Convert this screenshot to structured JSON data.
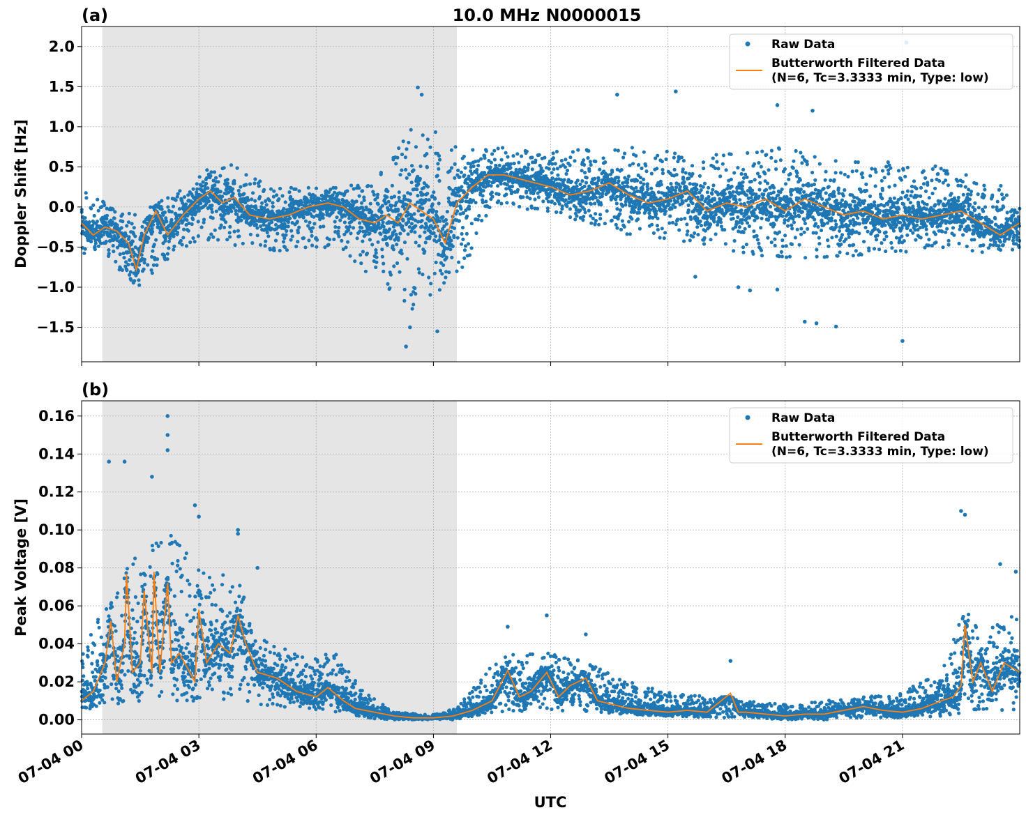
{
  "figure_title": "10.0 MHz N0000015",
  "xlabel": "UTC",
  "x_tick_labels": [
    "07-04 00",
    "07-04 03",
    "07-04 06",
    "07-04 09",
    "07-04 12",
    "07-04 15",
    "07-04 18",
    "07-04 21"
  ],
  "colors": {
    "raw": "#1f77b4",
    "filtered": "#ff7f0e",
    "shade": "#e5e5e5",
    "grid": "#b0b0b0"
  },
  "legend": {
    "raw_label": "Raw Data",
    "filtered_label_1": "Butterworth Filtered Data",
    "filtered_label_2": "(N=6, Tc=3.3333 min, Type: low)"
  },
  "chart_data": [
    {
      "panel": "(a)",
      "type": "scatter",
      "ylabel": "Doppler Shift [Hz]",
      "xlim_hours": [
        0,
        24
      ],
      "ylim": [
        -1.93,
        2.25
      ],
      "y_ticks": [
        2.0,
        1.5,
        1.0,
        0.5,
        0.0,
        -0.5,
        -1.0,
        -1.5
      ],
      "y_tick_labels": [
        "2.0",
        "1.5",
        "1.0",
        "0.5",
        "0.0",
        "−0.5",
        "−1.0",
        "−1.5"
      ],
      "shaded_span_hours": [
        0.53,
        9.6
      ],
      "grid": true,
      "legend_position": "top-right",
      "series": [
        {
          "name": "Raw Data",
          "style": "points",
          "envelope_hours": [
            0,
            0.5,
            1.4,
            2.5,
            3.5,
            5.0,
            6.5,
            7.5,
            8.5,
            9.6,
            10.5,
            12.0,
            14.0,
            16.0,
            18.0,
            20.0,
            22.0,
            24.0
          ],
          "envelope_low": [
            -0.6,
            -0.55,
            -1.05,
            -0.5,
            -0.45,
            -0.55,
            -0.5,
            -0.9,
            -1.3,
            -1.0,
            0.05,
            -0.1,
            -0.35,
            -0.5,
            -0.65,
            -0.6,
            -0.55,
            -0.6
          ],
          "envelope_high": [
            0.2,
            0.1,
            -0.1,
            0.2,
            0.6,
            0.25,
            0.25,
            0.3,
            1.1,
            0.8,
            0.75,
            0.7,
            0.75,
            0.65,
            0.75,
            0.6,
            0.5,
            0.2
          ],
          "outliers": [
            [
              8.6,
              1.49
            ],
            [
              8.7,
              1.4
            ],
            [
              8.3,
              -1.74
            ],
            [
              8.4,
              -1.5
            ],
            [
              9.1,
              -1.55
            ],
            [
              13.7,
              1.4
            ],
            [
              15.2,
              1.44
            ],
            [
              17.8,
              1.27
            ],
            [
              18.7,
              1.2
            ],
            [
              18.5,
              -1.43
            ],
            [
              18.8,
              -1.45
            ],
            [
              19.3,
              -1.49
            ],
            [
              21.0,
              -1.67
            ],
            [
              21.1,
              2.05
            ],
            [
              15.7,
              -0.87
            ],
            [
              16.8,
              -1.0
            ],
            [
              17.1,
              -1.04
            ],
            [
              17.8,
              -1.03
            ]
          ]
        },
        {
          "name": "Butterworth Filtered Data (N=6, Tc=3.3333 min, Type: low)",
          "style": "line",
          "x_hours": [
            0,
            0.3,
            0.6,
            0.9,
            1.2,
            1.4,
            1.6,
            1.9,
            2.2,
            2.6,
            3.0,
            3.3,
            3.6,
            3.9,
            4.3,
            4.8,
            5.3,
            5.8,
            6.3,
            6.7,
            7.1,
            7.5,
            7.8,
            8.1,
            8.4,
            8.7,
            9.0,
            9.3,
            9.6,
            10.0,
            10.4,
            10.8,
            11.2,
            11.6,
            12.0,
            12.5,
            13.0,
            13.5,
            14.0,
            14.5,
            15.0,
            15.5,
            16.0,
            16.5,
            17.0,
            17.5,
            18.0,
            18.5,
            19.0,
            19.5,
            20.0,
            20.5,
            21.0,
            21.5,
            22.0,
            22.5,
            23.0,
            23.5,
            24.0
          ],
          "values": [
            -0.2,
            -0.35,
            -0.25,
            -0.3,
            -0.45,
            -0.78,
            -0.35,
            -0.05,
            -0.35,
            -0.1,
            0.1,
            0.2,
            0.05,
            0.12,
            -0.1,
            -0.15,
            -0.1,
            0.0,
            0.05,
            0.0,
            -0.15,
            -0.2,
            -0.1,
            -0.2,
            0.05,
            -0.05,
            -0.15,
            -0.45,
            0.05,
            0.25,
            0.4,
            0.4,
            0.35,
            0.3,
            0.25,
            0.15,
            0.2,
            0.3,
            0.15,
            0.05,
            0.1,
            0.2,
            -0.05,
            0.05,
            0.0,
            0.1,
            -0.05,
            0.1,
            0.0,
            -0.1,
            -0.05,
            -0.15,
            -0.1,
            -0.15,
            -0.1,
            -0.05,
            -0.2,
            -0.35,
            -0.2
          ]
        }
      ]
    },
    {
      "panel": "(b)",
      "type": "scatter",
      "ylabel": "Peak Voltage [V]",
      "xlim_hours": [
        0,
        24
      ],
      "ylim": [
        -0.0075,
        0.168
      ],
      "y_ticks": [
        0.16,
        0.14,
        0.12,
        0.1,
        0.08,
        0.06,
        0.04,
        0.02,
        0.0
      ],
      "y_tick_labels": [
        "0.16",
        "0.14",
        "0.12",
        "0.10",
        "0.08",
        "0.06",
        "0.04",
        "0.02",
        "0.00"
      ],
      "shaded_span_hours": [
        0.53,
        9.6
      ],
      "grid": true,
      "legend_position": "top-right",
      "series": [
        {
          "name": "Raw Data",
          "style": "points",
          "envelope_hours": [
            0,
            0.7,
            1.5,
            2.2,
            3.0,
            4.0,
            4.5,
            5.5,
            6.5,
            7.2,
            8.0,
            9.0,
            9.6,
            10.5,
            11.0,
            12.0,
            13.0,
            14.0,
            15.0,
            16.0,
            16.6,
            17.0,
            18.0,
            19.0,
            20.0,
            21.0,
            22.0,
            22.6,
            23.0,
            24.0
          ],
          "envelope_low": [
            0.005,
            0.008,
            0.01,
            0.01,
            0.01,
            0.01,
            0.008,
            0.006,
            0.004,
            0.001,
            0.0,
            0.0,
            0.0,
            0.003,
            0.004,
            0.005,
            0.004,
            0.003,
            0.002,
            0.001,
            0.001,
            0.001,
            0.0,
            0.0,
            0.001,
            0.001,
            0.002,
            0.004,
            0.005,
            0.005
          ],
          "envelope_high": [
            0.035,
            0.065,
            0.09,
            0.1,
            0.08,
            0.075,
            0.045,
            0.035,
            0.035,
            0.015,
            0.004,
            0.003,
            0.006,
            0.03,
            0.035,
            0.035,
            0.03,
            0.02,
            0.015,
            0.012,
            0.012,
            0.01,
            0.008,
            0.01,
            0.012,
            0.015,
            0.025,
            0.06,
            0.045,
            0.06
          ],
          "outliers": [
            [
              0.7,
              0.136
            ],
            [
              1.1,
              0.136
            ],
            [
              1.8,
              0.128
            ],
            [
              2.2,
              0.16
            ],
            [
              2.2,
              0.15
            ],
            [
              2.2,
              0.142
            ],
            [
              2.9,
              0.113
            ],
            [
              3.0,
              0.107
            ],
            [
              4.0,
              0.1
            ],
            [
              4.0,
              0.098
            ],
            [
              4.5,
              0.08
            ],
            [
              10.9,
              0.049
            ],
            [
              11.9,
              0.055
            ],
            [
              12.9,
              0.045
            ],
            [
              16.6,
              0.031
            ],
            [
              22.5,
              0.11
            ],
            [
              22.6,
              0.108
            ],
            [
              23.5,
              0.082
            ],
            [
              23.9,
              0.078
            ]
          ]
        },
        {
          "name": "Butterworth Filtered Data (N=6, Tc=3.3333 min, Type: low)",
          "style": "line",
          "x_hours": [
            0,
            0.3,
            0.6,
            0.75,
            0.9,
            1.1,
            1.15,
            1.3,
            1.5,
            1.6,
            1.8,
            1.85,
            2.0,
            2.2,
            2.3,
            2.5,
            2.9,
            3.0,
            3.2,
            3.5,
            3.8,
            4.0,
            4.2,
            4.5,
            5.0,
            5.5,
            6.0,
            6.3,
            6.7,
            7.0,
            7.5,
            8.0,
            8.5,
            9.0,
            9.5,
            10.0,
            10.5,
            10.9,
            11.2,
            11.5,
            11.9,
            12.2,
            12.5,
            12.9,
            13.2,
            13.6,
            14.0,
            14.5,
            15.0,
            15.5,
            16.0,
            16.6,
            16.8,
            17.0,
            17.5,
            18.0,
            18.5,
            19.0,
            19.5,
            20.0,
            20.5,
            21.0,
            21.5,
            22.0,
            22.3,
            22.5,
            22.6,
            22.8,
            23.0,
            23.3,
            23.6,
            24.0
          ],
          "values": [
            0.01,
            0.015,
            0.03,
            0.052,
            0.02,
            0.04,
            0.077,
            0.025,
            0.03,
            0.068,
            0.025,
            0.078,
            0.025,
            0.072,
            0.03,
            0.035,
            0.02,
            0.058,
            0.03,
            0.04,
            0.035,
            0.055,
            0.04,
            0.025,
            0.022,
            0.015,
            0.012,
            0.017,
            0.01,
            0.006,
            0.004,
            0.002,
            0.001,
            0.001,
            0.002,
            0.005,
            0.01,
            0.026,
            0.012,
            0.015,
            0.025,
            0.012,
            0.018,
            0.022,
            0.01,
            0.008,
            0.006,
            0.005,
            0.004,
            0.005,
            0.004,
            0.014,
            0.004,
            0.004,
            0.003,
            0.002,
            0.003,
            0.003,
            0.005,
            0.007,
            0.005,
            0.004,
            0.006,
            0.01,
            0.012,
            0.018,
            0.05,
            0.02,
            0.03,
            0.015,
            0.03,
            0.025
          ]
        }
      ]
    }
  ]
}
